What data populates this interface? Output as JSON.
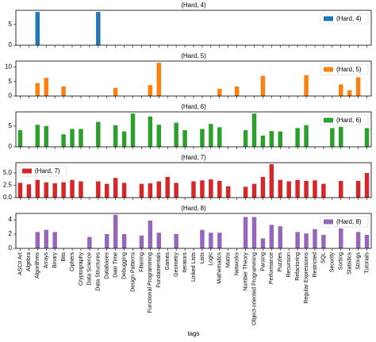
{
  "chart_data": [
    {
      "type": "bar",
      "title": "(Hard, 4)",
      "legend": "upper right",
      "ylim": [
        0,
        8.4
      ],
      "yticks": [
        0,
        5
      ],
      "series": [
        {
          "name": "(Hard, 4)",
          "color": "#1f77b4",
          "values": [
            null,
            null,
            8,
            null,
            null,
            null,
            null,
            null,
            null,
            8,
            null,
            null,
            null,
            null,
            null,
            null,
            null,
            null,
            null,
            null,
            null,
            null,
            null,
            null,
            null,
            null,
            null,
            null,
            null,
            null,
            null,
            null,
            null,
            null,
            null,
            null,
            null,
            null,
            null,
            null,
            null
          ]
        }
      ]
    },
    {
      "type": "bar",
      "title": "(Hard, 5)",
      "legend": "upper right",
      "ylim": [
        0,
        12.1
      ],
      "yticks": [
        0,
        5,
        10
      ],
      "series": [
        {
          "name": "(Hard, 5)",
          "color": "#ff7f0e",
          "values": [
            null,
            null,
            4.5,
            6.3,
            null,
            3.3,
            null,
            null,
            null,
            null,
            null,
            2.8,
            null,
            null,
            null,
            3.8,
            11.5,
            null,
            null,
            null,
            null,
            null,
            null,
            2.5,
            null,
            3.3,
            null,
            null,
            7,
            null,
            null,
            null,
            null,
            7.2,
            null,
            null,
            null,
            4,
            2,
            6.5,
            null
          ]
        }
      ]
    },
    {
      "type": "bar",
      "title": "(Hard, 6)",
      "legend": "upper right",
      "ylim": [
        0,
        8.4
      ],
      "yticks": [
        0,
        5
      ],
      "series": [
        {
          "name": "(Hard, 6)",
          "color": "#2ca02c",
          "values": [
            4,
            null,
            5.3,
            5,
            null,
            3,
            4.3,
            4.3,
            null,
            6,
            null,
            5.2,
            3.7,
            8,
            null,
            7.3,
            5.3,
            null,
            5.8,
            4,
            null,
            4.3,
            5.5,
            4.7,
            null,
            null,
            4,
            8,
            2.7,
            3.8,
            3.7,
            null,
            4.5,
            5.2,
            null,
            null,
            4.5,
            4.8,
            null,
            null,
            4.5
          ]
        }
      ]
    },
    {
      "type": "bar",
      "title": "(Hard, 7)",
      "legend": "upper left",
      "ylim": [
        0,
        7.1
      ],
      "yticks": [
        {
          "value": 0,
          "label": "0.0"
        },
        2.5,
        {
          "value": 5,
          "label": "5.0"
        }
      ],
      "series": [
        {
          "name": "(Hard, 7)",
          "color": "#d62728",
          "values": [
            3,
            2.7,
            3.6,
            3.1,
            2.9,
            3.1,
            3.6,
            3.3,
            null,
            3.3,
            2.8,
            4,
            3,
            null,
            2.8,
            2.9,
            3.3,
            4.2,
            3,
            null,
            3.3,
            3.5,
            3.7,
            3.4,
            2.3,
            null,
            2.2,
            2.8,
            4.2,
            6.8,
            3.6,
            3.3,
            3.6,
            3.4,
            3.5,
            2.8,
            null,
            3.4,
            null,
            3.4,
            5
          ]
        }
      ]
    },
    {
      "type": "bar",
      "title": "(Hard, 8)",
      "legend": "upper right",
      "ylim": [
        0,
        4.9
      ],
      "yticks": [
        0,
        2,
        4
      ],
      "xlabel": "tags",
      "categories": [
        "ASCII Art",
        "Algebra",
        "Algorithms",
        "Arrays",
        "Binary",
        "Bits",
        "Ciphers",
        "Cryptography",
        "Data Science",
        "Data Structures",
        "Databases",
        "Date Time",
        "Debugging",
        "Design Patterns",
        "Filtering",
        "Functional Programming",
        "Fundamentals",
        "Games",
        "Geometry",
        "Iterators",
        "Linked Lists",
        "Lists",
        "Logic",
        "Mathematics",
        "Matrix",
        "Networks",
        "Number Theory",
        "Object-oriented Programming",
        "Parsing",
        "Performance",
        "Puzzles",
        "Recursion",
        "Refactoring",
        "Regular Expressions",
        "Restricted",
        "SQL",
        "Security",
        "Sorting",
        "Statistics",
        "Strings",
        "Tutorials"
      ],
      "series": [
        {
          "name": "(Hard, 8)",
          "color": "#9467bd",
          "values": [
            null,
            null,
            2.3,
            2.6,
            2.3,
            null,
            null,
            null,
            1.6,
            null,
            2,
            4.7,
            2,
            null,
            1.8,
            3.9,
            2.2,
            null,
            2,
            null,
            null,
            2.6,
            2.2,
            2.2,
            null,
            null,
            4.4,
            4.4,
            1.4,
            3.3,
            3.1,
            null,
            2.3,
            2.1,
            2.7,
            1.9,
            null,
            2.8,
            null,
            2.3,
            1.9
          ]
        }
      ]
    }
  ]
}
